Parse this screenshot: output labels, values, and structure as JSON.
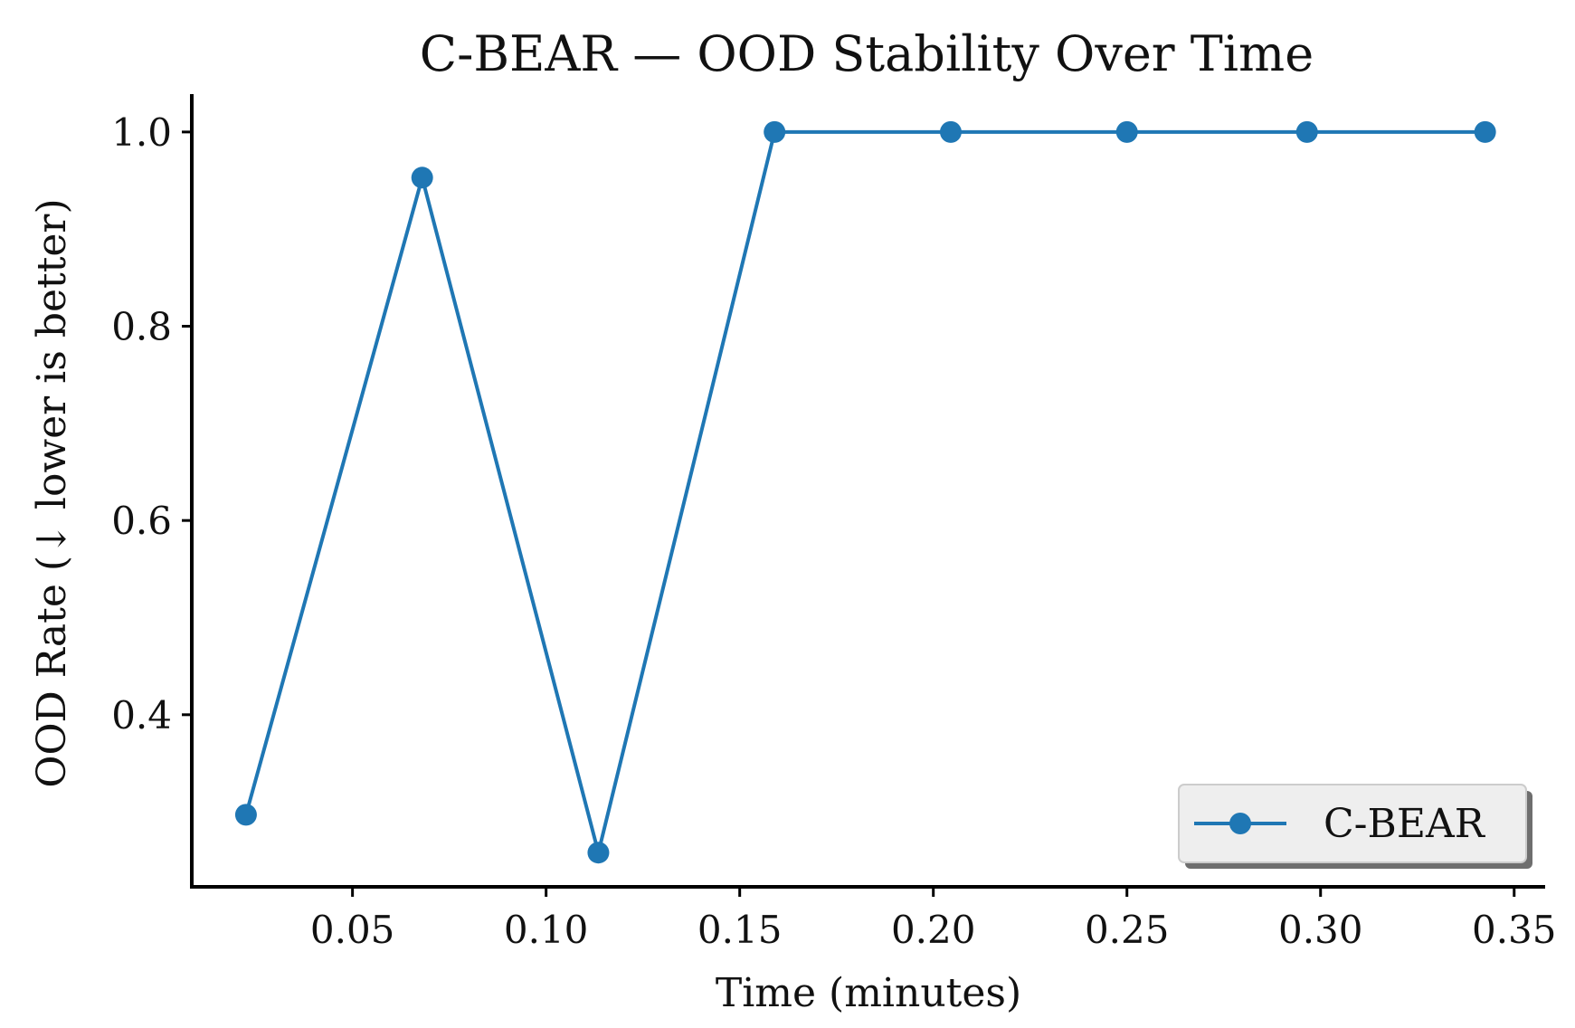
{
  "chart_data": {
    "type": "line",
    "title": "C-BEAR — OOD Stability Over Time",
    "xlabel": "Time (minutes)",
    "ylabel": "OOD Rate (↓ lower is better)",
    "xlim": [
      0.0085,
      0.358
    ],
    "ylim": [
      0.2228,
      1.039
    ],
    "xticks": [
      0.05,
      0.1,
      0.15,
      0.2,
      0.25,
      0.3,
      0.35
    ],
    "xtick_labels": [
      "0.05",
      "0.10",
      "0.15",
      "0.20",
      "0.25",
      "0.30",
      "0.35"
    ],
    "yticks": [
      0.4,
      0.6,
      0.8,
      1.0
    ],
    "ytick_labels": [
      "0.4",
      "0.6",
      "0.8",
      "1.0"
    ],
    "grid": false,
    "legend_position": "lower-right",
    "series": [
      {
        "name": "C-BEAR",
        "color": "#1f77b4",
        "x": [
          0.0225,
          0.068,
          0.1135,
          0.159,
          0.2045,
          0.25,
          0.2965,
          0.3425
        ],
        "y": [
          0.297,
          0.953,
          0.258,
          1.0,
          1.0,
          1.0,
          1.0,
          1.0
        ]
      }
    ]
  }
}
